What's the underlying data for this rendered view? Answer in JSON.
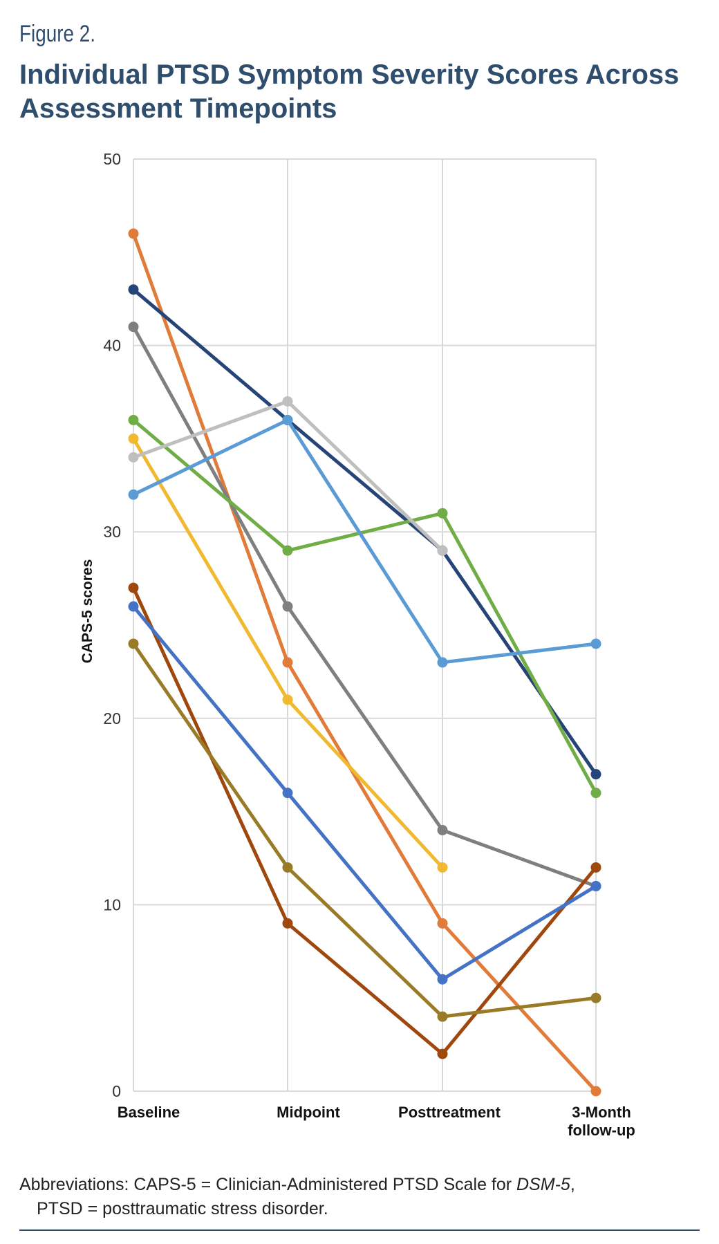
{
  "figure": {
    "label": "Figure 2.",
    "title": "Individual PTSD Symptom Severity Scores Across Assessment Timepoints"
  },
  "chart_data": {
    "type": "line",
    "title": "Individual PTSD Symptom Severity Scores Across Assessment Timepoints",
    "xlabel": "",
    "ylabel": "CAPS-5 scores",
    "ylim": [
      0,
      50
    ],
    "yticks": [
      0,
      10,
      20,
      30,
      40,
      50
    ],
    "grid": true,
    "legend": "none",
    "categories": [
      "Baseline",
      "Midpoint",
      "Posttreatment",
      "3-Month follow-up"
    ],
    "category_lines": [
      [
        "Baseline"
      ],
      [
        "Midpoint"
      ],
      [
        "Posttreatment"
      ],
      [
        "3-Month",
        "follow-up"
      ]
    ],
    "series": [
      {
        "color": "#e07b39",
        "values": [
          46,
          23,
          9,
          0
        ]
      },
      {
        "color": "#264478",
        "values": [
          43,
          36,
          29,
          17
        ]
      },
      {
        "color": "#7f7f7f",
        "values": [
          41,
          26,
          14,
          11
        ]
      },
      {
        "color": "#70ad47",
        "values": [
          36,
          29,
          31,
          16
        ]
      },
      {
        "color": "#f0b930",
        "values": [
          35,
          21,
          12,
          null
        ]
      },
      {
        "color": "#bfbfbf",
        "values": [
          34,
          37,
          29,
          null
        ]
      },
      {
        "color": "#5b9bd5",
        "values": [
          32,
          36,
          23,
          24
        ]
      },
      {
        "color": "#9e480e",
        "values": [
          27,
          9,
          2,
          12
        ]
      },
      {
        "color": "#4472c4",
        "values": [
          26,
          16,
          6,
          11
        ]
      },
      {
        "color": "#997a26",
        "values": [
          24,
          12,
          4,
          5
        ]
      }
    ]
  },
  "footnote": {
    "line1_prefix": "Abbreviations: CAPS-5 = Clinician-Administered PTSD Scale for ",
    "line1_italic": "DSM-5",
    "line1_suffix": ",",
    "line2": "PTSD = posttraumatic stress disorder."
  }
}
